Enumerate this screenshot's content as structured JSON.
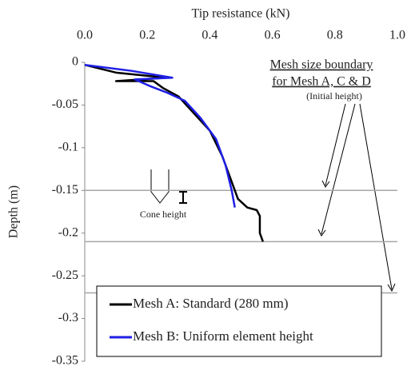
{
  "chart_data": {
    "type": "line",
    "xlabel": "Tip resistance (kN)",
    "ylabel": "Depth (m)",
    "xlim": [
      0,
      1
    ],
    "ylim": [
      -0.35,
      0
    ],
    "xticks": [
      {
        "value": 0,
        "label": "0.0"
      },
      0.2,
      0.4,
      0.6,
      0.8,
      {
        "value": 1,
        "label": "1.0"
      }
    ],
    "yticks": [
      0,
      -0.05,
      -0.1,
      -0.15,
      -0.2,
      -0.25,
      -0.3,
      -0.35
    ],
    "reference_lines": [
      -0.15,
      -0.21,
      -0.27
    ],
    "reference_color": "#a6a6a6",
    "annotations": [
      "Mesh size boundary",
      "for Mesh A, C & D",
      "(Initial height)",
      "Cone height"
    ],
    "legend": "bottom",
    "series": [
      {
        "name": "Mesh A: Standard (280 mm)",
        "color": "#000000",
        "x": [
          0.0,
          0.1,
          0.26,
          0.1,
          0.22,
          0.25,
          0.3,
          0.35,
          0.4,
          0.44,
          0.47,
          0.49,
          0.52,
          0.55,
          0.56,
          0.56,
          0.57
        ],
        "values": [
          -0.003,
          -0.012,
          -0.018,
          -0.022,
          -0.022,
          -0.03,
          -0.04,
          -0.06,
          -0.08,
          -0.11,
          -0.14,
          -0.16,
          -0.17,
          -0.173,
          -0.18,
          -0.2,
          -0.21
        ]
      },
      {
        "name": "Mesh B: Uniform element height",
        "color": "#1f1fe6",
        "x": [
          0.0,
          0.15,
          0.28,
          0.16,
          0.21,
          0.26,
          0.32,
          0.37,
          0.42,
          0.45,
          0.47,
          0.48
        ],
        "values": [
          -0.003,
          -0.01,
          -0.018,
          -0.02,
          -0.028,
          -0.035,
          -0.045,
          -0.065,
          -0.09,
          -0.12,
          -0.15,
          -0.17
        ]
      }
    ]
  }
}
